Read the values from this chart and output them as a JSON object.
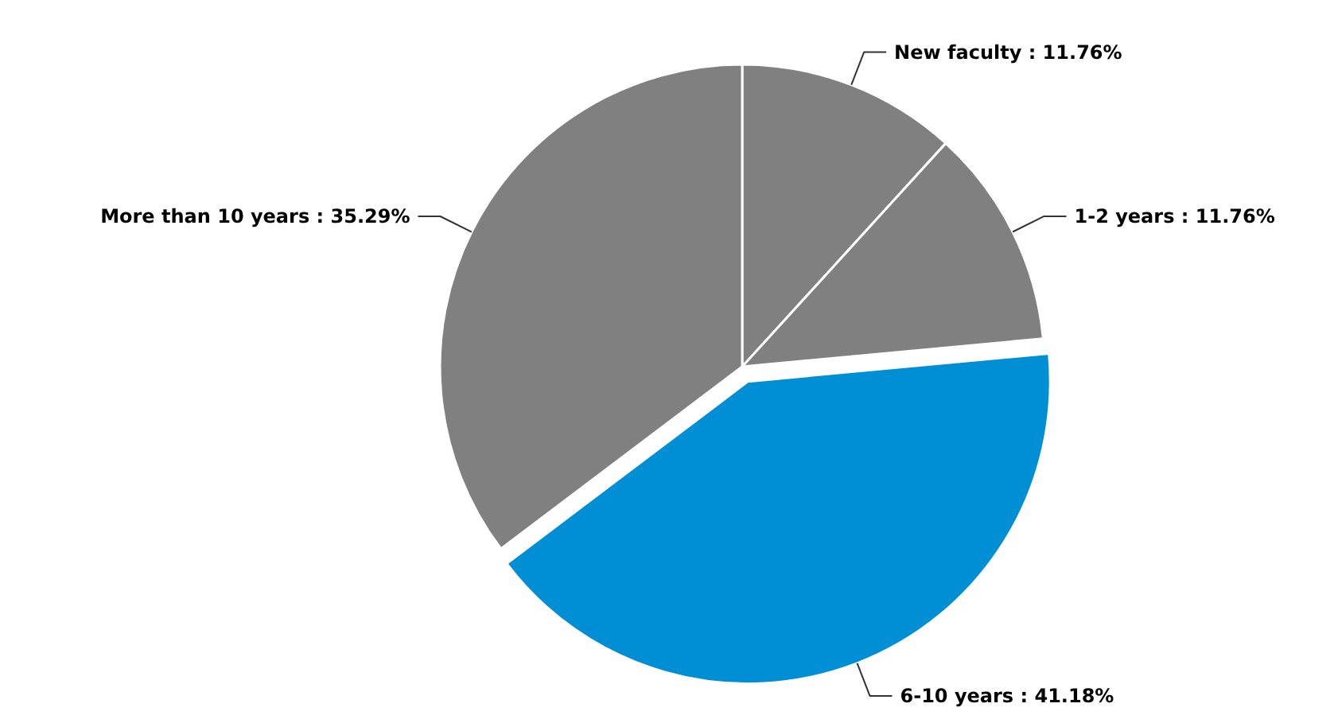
{
  "chart_data": {
    "type": "pie",
    "categories": [
      "New faculty",
      "1-2 years",
      "6-10 years",
      "More than 10 years"
    ],
    "values": [
      11.76,
      11.76,
      41.18,
      35.29
    ],
    "value_labels": [
      "11.76%",
      "11.76%",
      "41.18%",
      "35.29%"
    ],
    "colors": [
      "#808080",
      "#808080",
      "#008fd5",
      "#808080"
    ]
  }
}
